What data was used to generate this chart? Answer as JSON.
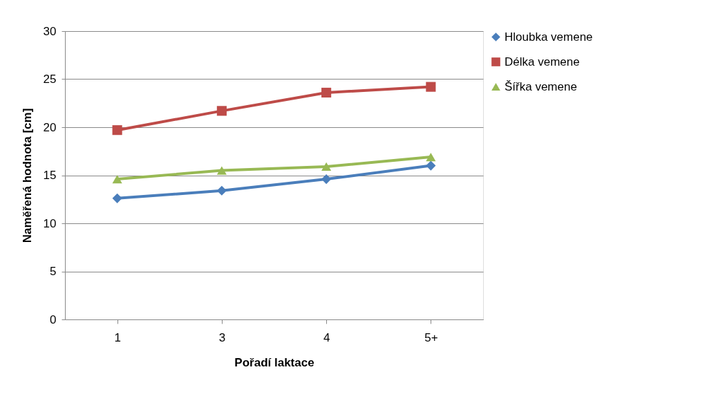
{
  "chart_data": {
    "type": "line",
    "xlabel": "Pořadí laktace",
    "ylabel": "Naměřená hodnota [cm]",
    "categories": [
      "1",
      "3",
      "4",
      "5+"
    ],
    "series": [
      {
        "name": "Hloubka vemene",
        "color": "#4a7ebb",
        "marker": "diamond",
        "values": [
          12.6,
          13.4,
          14.6,
          16.0
        ]
      },
      {
        "name": "Délka vemene",
        "color": "#be4b48",
        "marker": "square",
        "values": [
          19.7,
          21.7,
          23.6,
          24.2
        ]
      },
      {
        "name": "Šířka vemene",
        "color": "#98b954",
        "marker": "triangle",
        "values": [
          14.6,
          15.5,
          15.9,
          16.9
        ]
      }
    ],
    "ylim": [
      0,
      30
    ],
    "yticks": [
      0,
      5,
      10,
      15,
      20,
      25,
      30
    ],
    "grid": "y",
    "legend": "right",
    "line_style": "solid"
  }
}
